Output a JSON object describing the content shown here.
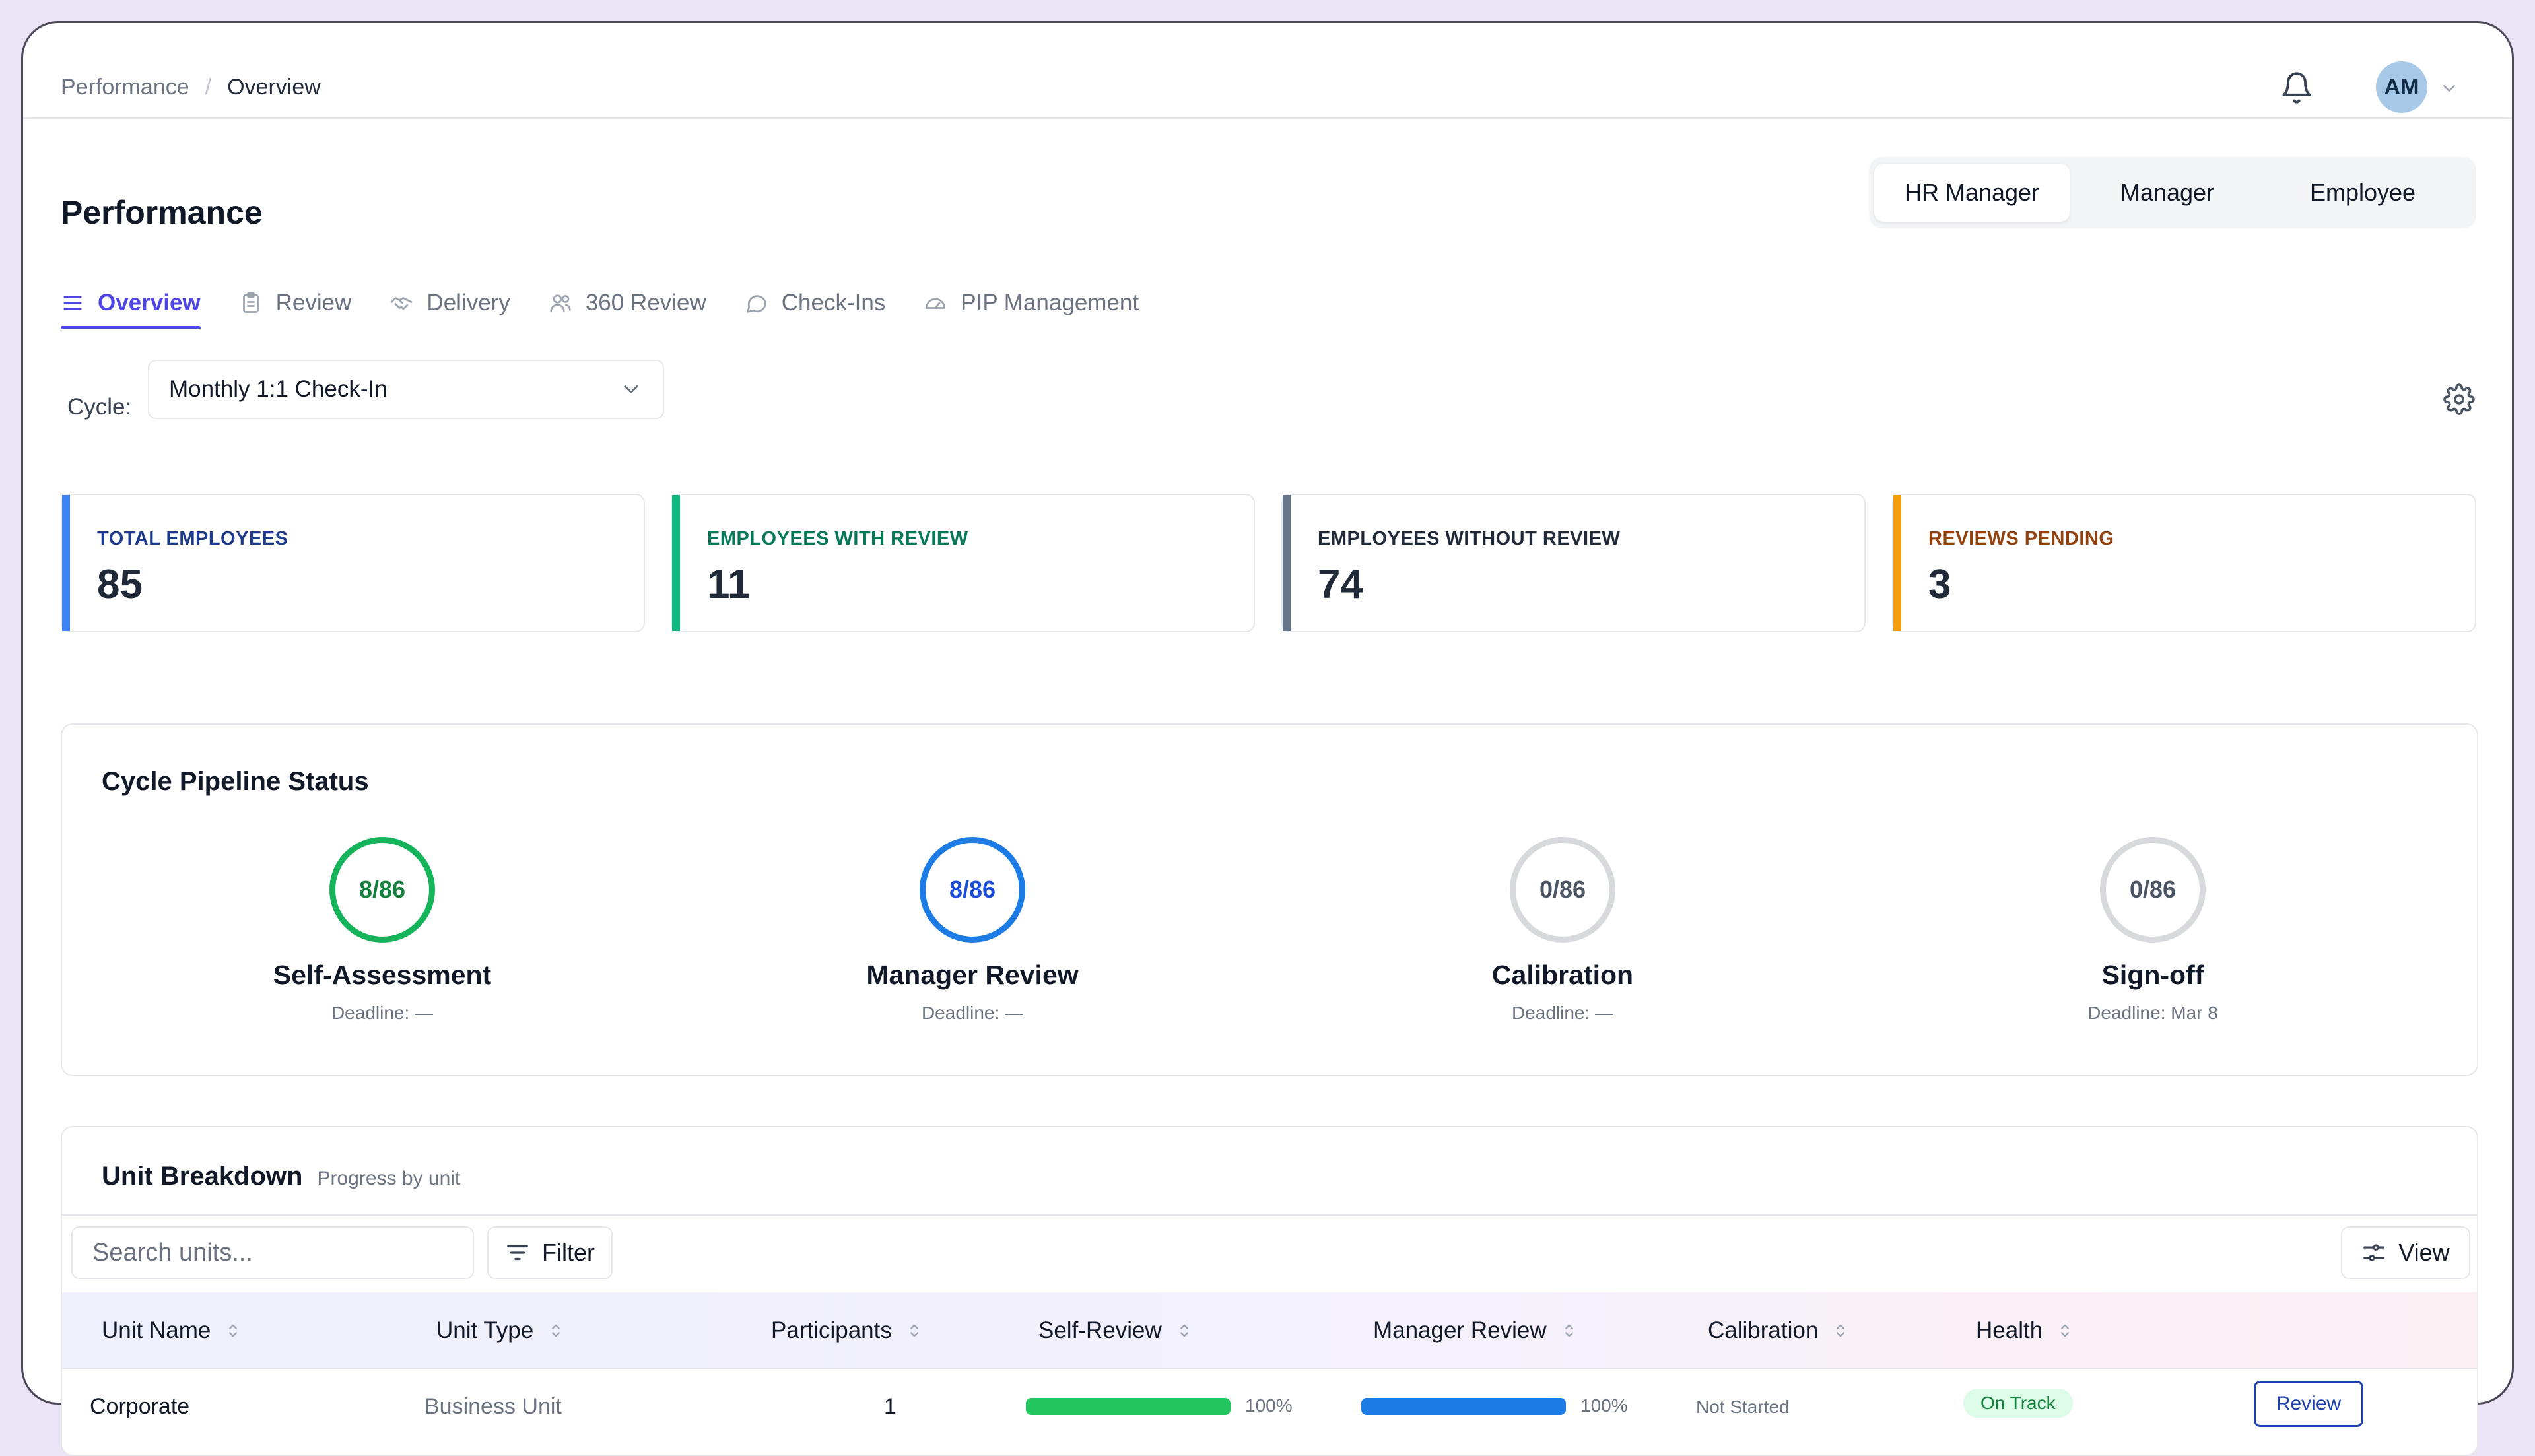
{
  "breadcrumb": {
    "parent": "Performance",
    "separator": "/",
    "current": "Overview"
  },
  "user": {
    "initials": "AM"
  },
  "page": {
    "title": "Performance"
  },
  "roles": [
    {
      "label": "HR Manager",
      "active": true
    },
    {
      "label": "Manager",
      "active": false
    },
    {
      "label": "Employee",
      "active": false
    }
  ],
  "tabs": [
    {
      "label": "Overview",
      "icon": "menu-lines-icon",
      "active": true
    },
    {
      "label": "Review",
      "icon": "clipboard-icon",
      "active": false
    },
    {
      "label": "Delivery",
      "icon": "handshake-icon",
      "active": false
    },
    {
      "label": "360 Review",
      "icon": "users-icon",
      "active": false
    },
    {
      "label": "Check-Ins",
      "icon": "chat-bubble-icon",
      "active": false
    },
    {
      "label": "PIP Management",
      "icon": "gauge-icon",
      "active": false
    }
  ],
  "cycle": {
    "label": "Cycle:",
    "value": "Monthly 1:1 Check-In"
  },
  "stats": [
    {
      "label": "TOTAL EMPLOYEES",
      "value": "85",
      "accent": "#3b82f6",
      "label_color": "#1e3a8a"
    },
    {
      "label": "EMPLOYEES WITH REVIEW",
      "value": "11",
      "accent": "#10b981",
      "label_color": "#047857"
    },
    {
      "label": "EMPLOYEES WITHOUT REVIEW",
      "value": "74",
      "accent": "#64748b",
      "label_color": "#1f2937"
    },
    {
      "label": "REVIEWS PENDING",
      "value": "3",
      "accent": "#f59e0b",
      "label_color": "#92400e"
    }
  ],
  "pipeline": {
    "title": "Cycle Pipeline Status",
    "stages": [
      {
        "count": "8/86",
        "name": "Self-Assessment",
        "deadline": "Deadline: —",
        "ring": "#16b45a",
        "text": "#15803d"
      },
      {
        "count": "8/86",
        "name": "Manager Review",
        "deadline": "Deadline: —",
        "ring": "#1d7be6",
        "text": "#1d4ed8"
      },
      {
        "count": "0/86",
        "name": "Calibration",
        "deadline": "Deadline: —",
        "ring": "#d7d9dd",
        "text": "#4b5563"
      },
      {
        "count": "0/86",
        "name": "Sign-off",
        "deadline": "Deadline: Mar 8",
        "ring": "#d7d9dd",
        "text": "#4b5563"
      }
    ]
  },
  "units": {
    "title": "Unit Breakdown",
    "subtitle": "Progress by unit",
    "search_placeholder": "Search units...",
    "filter_label": "Filter",
    "view_label": "View",
    "columns": [
      "Unit Name",
      "Unit Type",
      "Participants",
      "Self-Review",
      "Manager Review",
      "Calibration",
      "Health"
    ],
    "rows": [
      {
        "unit_name": "Corporate",
        "unit_type": "Business Unit",
        "participants": "1",
        "self_review_pct": "100%",
        "self_review_progress": 1.0,
        "manager_review_pct": "100%",
        "manager_review_progress": 1.0,
        "calibration": "Not Started",
        "health": "On Track",
        "action": "Review"
      }
    ]
  }
}
